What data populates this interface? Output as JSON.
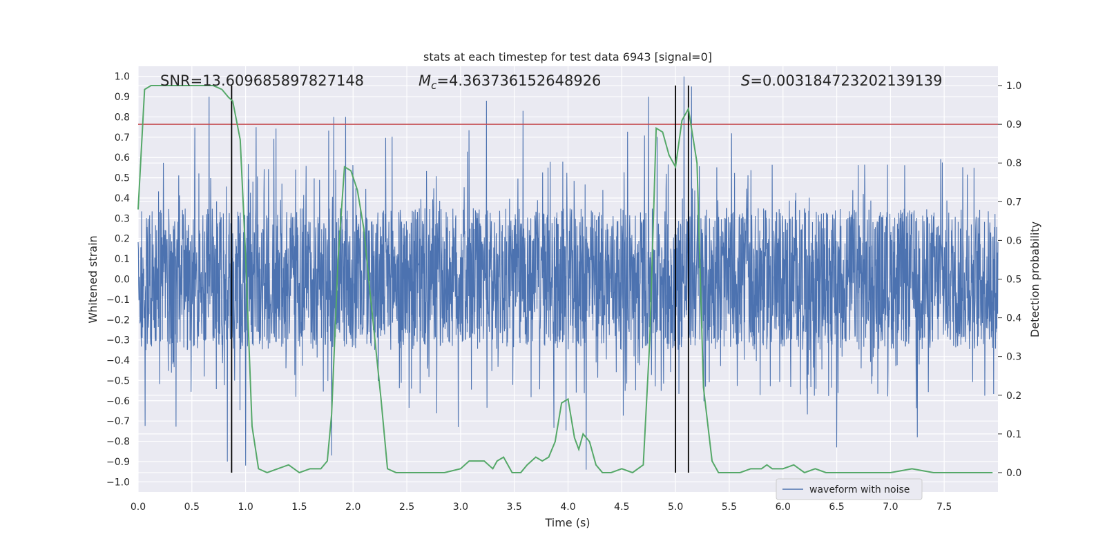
{
  "chart_data": {
    "type": "line",
    "title": "stats at each timestep for test data 6943 [signal=0]",
    "xlabel": "Time (s)",
    "ylabel_left": "Whitened strain",
    "ylabel_right": "Detection probability",
    "xlim": [
      0.0,
      8.0
    ],
    "ylim_left": [
      -1.05,
      1.05
    ],
    "ylim_right": [
      -0.05,
      1.05
    ],
    "x_ticks": [
      "0.0",
      "0.5",
      "1.0",
      "1.5",
      "2.0",
      "2.5",
      "3.0",
      "3.5",
      "4.0",
      "4.5",
      "5.0",
      "5.5",
      "6.0",
      "6.5",
      "7.0",
      "7.5"
    ],
    "x_tick_values": [
      0.0,
      0.5,
      1.0,
      1.5,
      2.0,
      2.5,
      3.0,
      3.5,
      4.0,
      4.5,
      5.0,
      5.5,
      6.0,
      6.5,
      7.0,
      7.5
    ],
    "y_ticks_left": [
      "1.0",
      "0.9",
      "0.8",
      "0.7",
      "0.6",
      "0.5",
      "0.4",
      "0.3",
      "0.2",
      "0.1",
      "0.0",
      "−0.1",
      "−0.2",
      "−0.3",
      "−0.4",
      "−0.5",
      "−0.6",
      "−0.7",
      "−0.8",
      "−0.9",
      "−1.0"
    ],
    "y_tick_values_left": [
      1.0,
      0.9,
      0.8,
      0.7,
      0.6,
      0.5,
      0.4,
      0.3,
      0.2,
      0.1,
      0.0,
      -0.1,
      -0.2,
      -0.3,
      -0.4,
      -0.5,
      -0.6,
      -0.7,
      -0.8,
      -0.9,
      -1.0
    ],
    "y_ticks_right": [
      "1.0",
      "0.9",
      "0.8",
      "0.7",
      "0.6",
      "0.5",
      "0.4",
      "0.3",
      "0.2",
      "0.1",
      "0.0"
    ],
    "y_tick_values_right": [
      1.0,
      0.9,
      0.8,
      0.7,
      0.6,
      0.5,
      0.4,
      0.3,
      0.2,
      0.1,
      0.0
    ],
    "annotations": {
      "snr": "SNR=13.609685897827148",
      "mc_symbol": "M",
      "mc_subscript": "c",
      "mc_value": "=4.363736152648926",
      "s_symbol": "S",
      "s_value": "=0.003184723202139139"
    },
    "legend": {
      "placement": "lower-center-right",
      "entries": [
        "waveform with noise"
      ]
    },
    "grid": true,
    "threshold_line": {
      "axis": "right",
      "value": 0.9,
      "color": "#c44e52"
    },
    "vertical_lines": [
      0.87,
      5.0,
      5.12
    ],
    "series": [
      {
        "name": "waveform with noise",
        "axis": "left",
        "color": "#4c72b0",
        "style": "dense-noise",
        "x_range": [
          0.0,
          8.0
        ],
        "typical_amplitude": 0.35,
        "envelope_percent_range": [
          -0.6,
          0.6
        ],
        "notable_peaks": [
          [
            0.66,
            0.9
          ],
          [
            1.82,
            0.8
          ],
          [
            1.93,
            0.8
          ],
          [
            3.24,
            0.88
          ],
          [
            3.58,
            0.83
          ],
          [
            4.75,
            0.9
          ],
          [
            5.08,
            1.0
          ],
          [
            5.15,
            0.95
          ],
          [
            0.83,
            -0.9
          ],
          [
            1.0,
            -0.92
          ],
          [
            1.8,
            -0.87
          ],
          [
            4.17,
            -0.94
          ],
          [
            6.5,
            -0.83
          ],
          [
            7.25,
            -0.78
          ]
        ]
      },
      {
        "name": "",
        "axis": "right",
        "color": "#55a868",
        "style": "line",
        "x": [
          0.0,
          0.06,
          0.12,
          0.2,
          0.3,
          0.5,
          0.7,
          0.78,
          0.84,
          0.88,
          0.95,
          1.0,
          1.06,
          1.12,
          1.2,
          1.3,
          1.4,
          1.5,
          1.6,
          1.7,
          1.76,
          1.8,
          1.86,
          1.92,
          1.98,
          2.04,
          2.1,
          2.16,
          2.26,
          2.32,
          2.4,
          2.48,
          2.6,
          2.7,
          2.85,
          3.0,
          3.08,
          3.14,
          3.22,
          3.3,
          3.34,
          3.4,
          3.48,
          3.56,
          3.62,
          3.7,
          3.76,
          3.82,
          3.88,
          3.94,
          4.0,
          4.06,
          4.1,
          4.14,
          4.2,
          4.26,
          4.32,
          4.4,
          4.5,
          4.6,
          4.7,
          4.76,
          4.82,
          4.88,
          4.94,
          5.0,
          5.06,
          5.12,
          5.2,
          5.26,
          5.34,
          5.4,
          5.5,
          5.6,
          5.7,
          5.8,
          5.85,
          5.9,
          6.0,
          6.1,
          6.2,
          6.3,
          6.4,
          6.5,
          6.6,
          6.8,
          7.0,
          7.2,
          7.4,
          7.6,
          7.8,
          7.95
        ],
        "values": [
          0.68,
          0.99,
          1.0,
          1.0,
          1.0,
          1.0,
          1.0,
          0.99,
          0.97,
          0.96,
          0.86,
          0.56,
          0.12,
          0.01,
          0.0,
          0.01,
          0.02,
          0.0,
          0.01,
          0.01,
          0.03,
          0.15,
          0.55,
          0.79,
          0.78,
          0.73,
          0.63,
          0.46,
          0.19,
          0.01,
          0.0,
          0.0,
          0.0,
          0.0,
          0.0,
          0.01,
          0.03,
          0.03,
          0.03,
          0.01,
          0.03,
          0.04,
          0.0,
          0.0,
          0.02,
          0.04,
          0.03,
          0.04,
          0.08,
          0.18,
          0.19,
          0.09,
          0.06,
          0.1,
          0.08,
          0.02,
          0.0,
          0.0,
          0.01,
          0.0,
          0.02,
          0.34,
          0.89,
          0.88,
          0.82,
          0.79,
          0.91,
          0.94,
          0.8,
          0.22,
          0.03,
          0.0,
          0.0,
          0.0,
          0.01,
          0.01,
          0.02,
          0.01,
          0.01,
          0.02,
          0.0,
          0.01,
          0.0,
          0.0,
          0.0,
          0.0,
          0.0,
          0.01,
          0.0,
          0.0,
          0.0,
          0.0
        ]
      }
    ]
  }
}
